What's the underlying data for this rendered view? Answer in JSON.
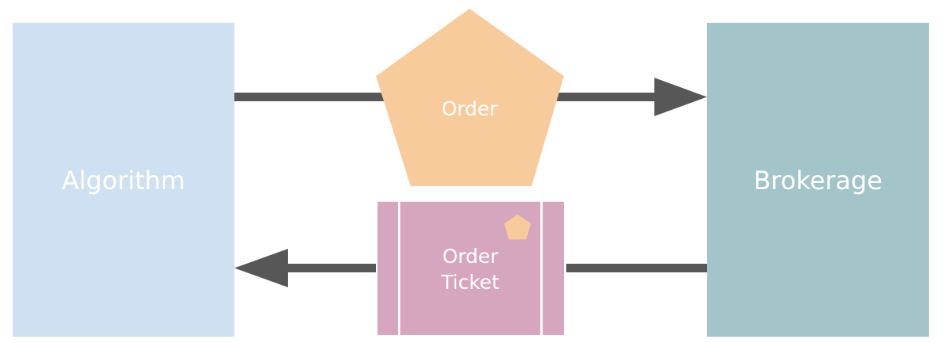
{
  "colors": {
    "algorithm_fill": "#CFE0F2",
    "brokerage_fill": "#A3C4C8",
    "order_fill": "#F8CB9D",
    "ticket_fill": "#D6A5BE",
    "arrow_color": "#575757",
    "label_color": "#FFFFFF"
  },
  "nodes": {
    "algorithm": {
      "label": "Algorithm"
    },
    "brokerage": {
      "label": "Brokerage"
    },
    "order": {
      "label": "Order"
    },
    "ticket": {
      "label_line1": "Order",
      "label_line2": "Ticket",
      "badge_icon": "pentagon-icon"
    }
  },
  "edges": [
    {
      "from": "algorithm",
      "to": "brokerage",
      "via": "order",
      "direction": "right"
    },
    {
      "from": "brokerage",
      "to": "algorithm",
      "via": "ticket",
      "direction": "left"
    }
  ]
}
